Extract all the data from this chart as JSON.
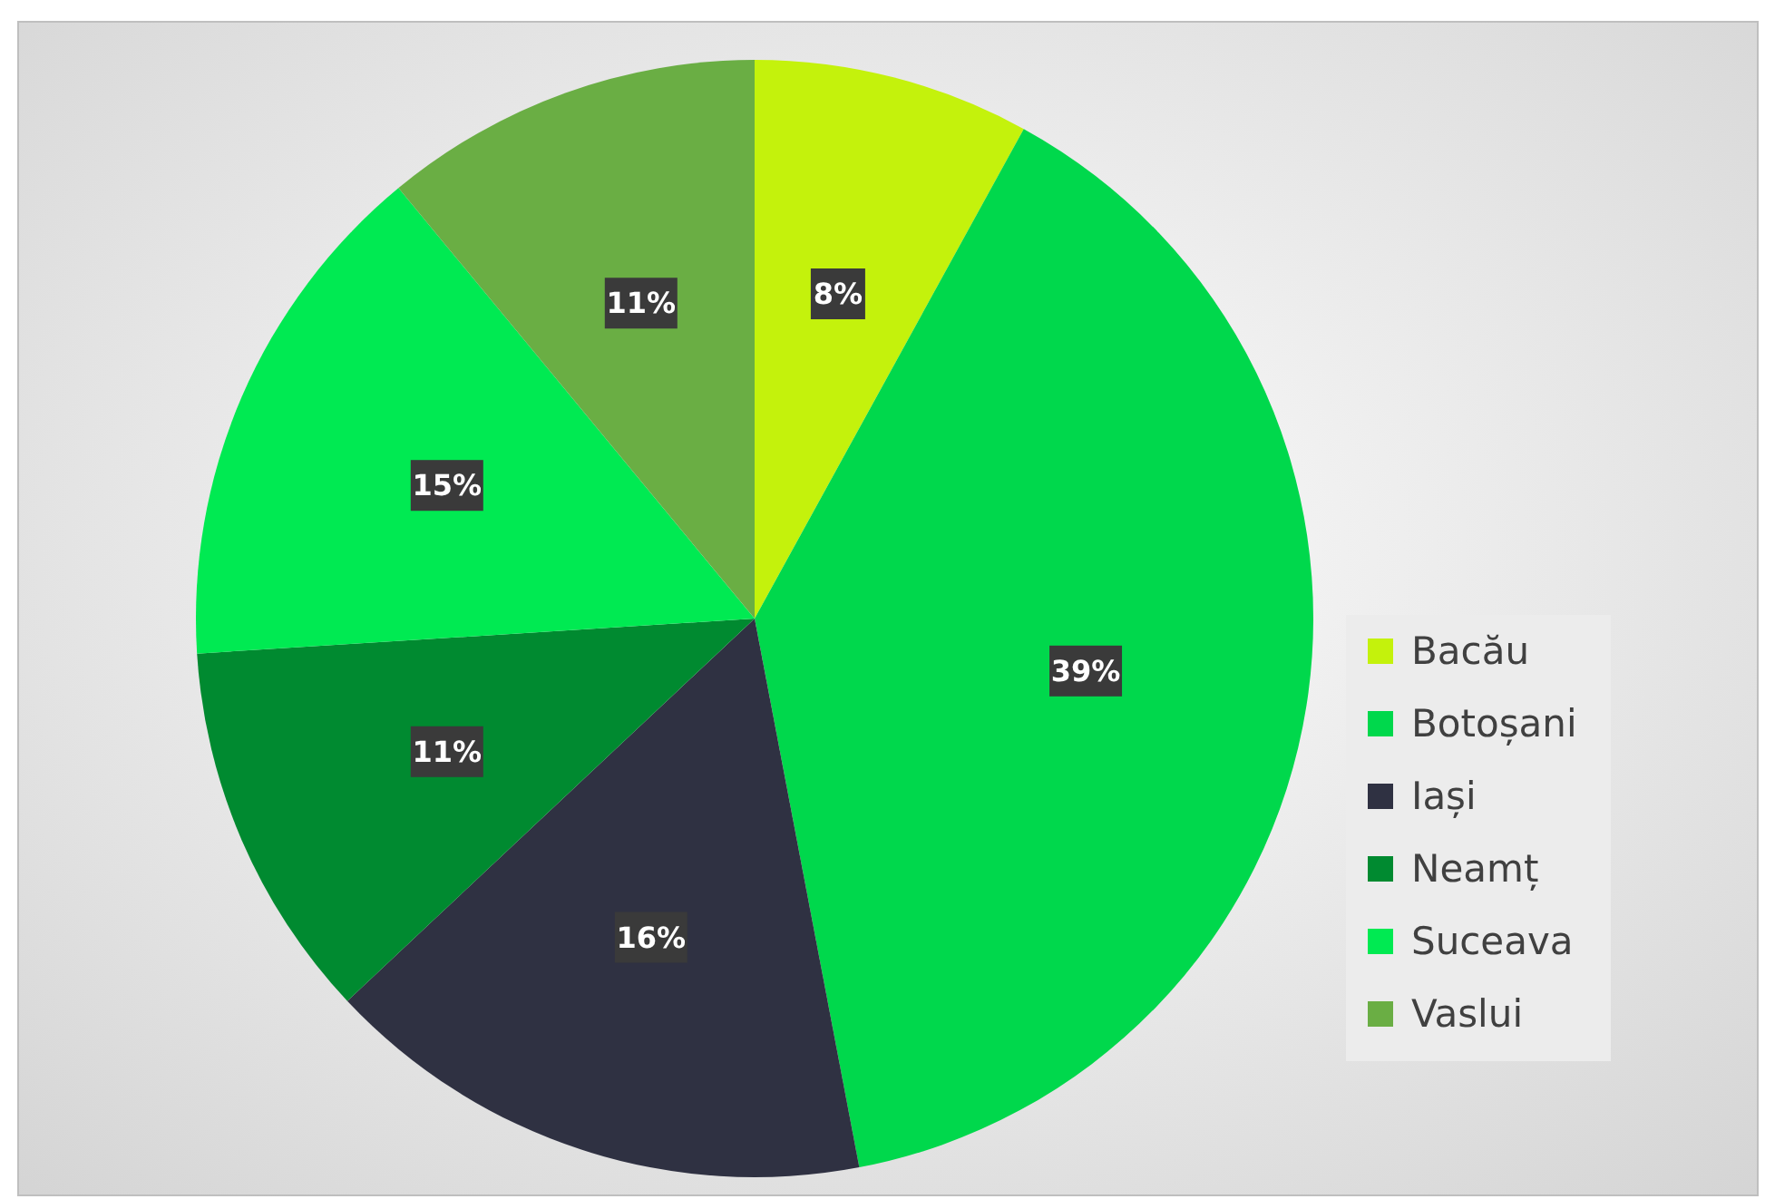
{
  "chart_data": {
    "type": "pie",
    "categories": [
      "Bacău",
      "Botoșani",
      "Iași",
      "Neamț",
      "Suceava",
      "Vaslui"
    ],
    "values": [
      8,
      39,
      16,
      11,
      15,
      11
    ],
    "colors": [
      "#c4f20c",
      "#00d84c",
      "#2f3142",
      "#008a30",
      "#00ea52",
      "#6aae44"
    ],
    "value_labels": [
      "8%",
      "39%",
      "16%",
      "11%",
      "15%",
      "11%"
    ],
    "legend": "right"
  }
}
